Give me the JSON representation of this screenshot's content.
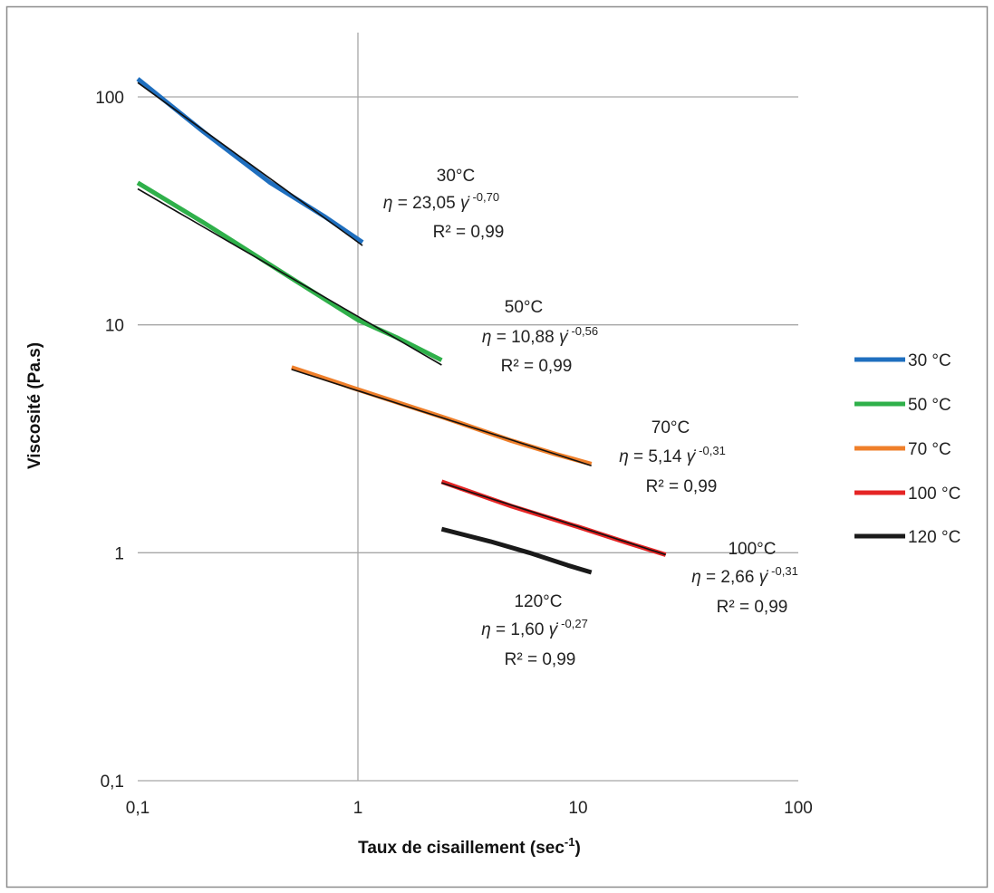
{
  "chart_data": {
    "type": "line",
    "title": "",
    "xlabel": "Taux de cisaillement (sec",
    "xlabel_sup": "-1",
    "xlabel_end": ")",
    "ylabel": "Viscosité (Pa.s)",
    "xscale": "log",
    "yscale": "log",
    "xlim": [
      0.1,
      100
    ],
    "ylim": [
      0.1,
      200
    ],
    "x_ticks": [
      "0,1",
      "1",
      "10",
      "100"
    ],
    "y_ticks": [
      "0,1",
      "1",
      "10",
      "100"
    ],
    "grid": true,
    "legend_position": "right",
    "series": [
      {
        "name": "30 °C",
        "color": "#1f6fbf",
        "points": [
          [
            0.1,
            120
          ],
          [
            0.2,
            70
          ],
          [
            0.4,
            42
          ],
          [
            0.7,
            30
          ],
          [
            1.05,
            23
          ]
        ],
        "fit": {
          "a": 23.05,
          "b": -0.7,
          "x_range": [
            0.1,
            1.05
          ]
        }
      },
      {
        "name": "50 °C",
        "color": "#2fb04a",
        "points": [
          [
            0.1,
            42
          ],
          [
            0.2,
            28
          ],
          [
            0.5,
            16
          ],
          [
            1.0,
            10.5
          ],
          [
            1.5,
            8.8
          ],
          [
            2.4,
            7.0
          ]
        ],
        "fit": {
          "a": 10.88,
          "b": -0.56,
          "x_range": [
            0.1,
            2.4
          ]
        }
      },
      {
        "name": "70 °C",
        "color": "#ef7f2a",
        "points": [
          [
            0.5,
            6.5
          ],
          [
            1.0,
            5.2
          ],
          [
            2.5,
            3.9
          ],
          [
            5.0,
            3.1
          ],
          [
            8.0,
            2.7
          ],
          [
            11.5,
            2.45
          ]
        ],
        "fit": {
          "a": 5.14,
          "b": -0.31,
          "x_range": [
            0.5,
            11.5
          ]
        }
      },
      {
        "name": "100 °C",
        "color": "#e52424",
        "points": [
          [
            2.4,
            2.05
          ],
          [
            5.0,
            1.6
          ],
          [
            10.0,
            1.3
          ],
          [
            17.0,
            1.1
          ],
          [
            25.0,
            0.98
          ]
        ],
        "fit": {
          "a": 2.66,
          "b": -0.31,
          "x_range": [
            2.4,
            25
          ]
        }
      },
      {
        "name": "120 °C",
        "color": "#1a1a1a",
        "points": [
          [
            2.4,
            1.27
          ],
          [
            4.0,
            1.12
          ],
          [
            6.0,
            1.0
          ],
          [
            9.0,
            0.88
          ],
          [
            11.5,
            0.82
          ]
        ],
        "fit": null
      }
    ],
    "annotations": [
      {
        "temp": "30°C",
        "eta": "η",
        "eq_mid": " = 23,05 ",
        "gamma": "γ",
        "exp": "-0,70",
        "r2": "R² = 0,99"
      },
      {
        "temp": "50°C",
        "eta": "η",
        "eq_mid": " = 10,88 ",
        "gamma": "γ",
        "exp": "-0,56",
        "r2": "R² = 0,99"
      },
      {
        "temp": "70°C",
        "eta": "η",
        "eq_mid": " = 5,14 ",
        "gamma": "γ",
        "exp": "-0,31",
        "r2": "R² = 0,99"
      },
      {
        "temp": "100°C",
        "eta": "η",
        "eq_mid": " = 2,66 ",
        "gamma": "γ",
        "exp": "-0,31",
        "r2": "R² = 0,99"
      },
      {
        "temp": "120°C",
        "eta": "η",
        "eq_mid": " = 1,60 ",
        "gamma": "γ",
        "exp": "-0,27",
        "r2": "R² = 0,99"
      }
    ],
    "colors": {
      "grid": "#a6a6a6",
      "frame": "#8c8c8c",
      "fit_line": "#111111"
    }
  }
}
